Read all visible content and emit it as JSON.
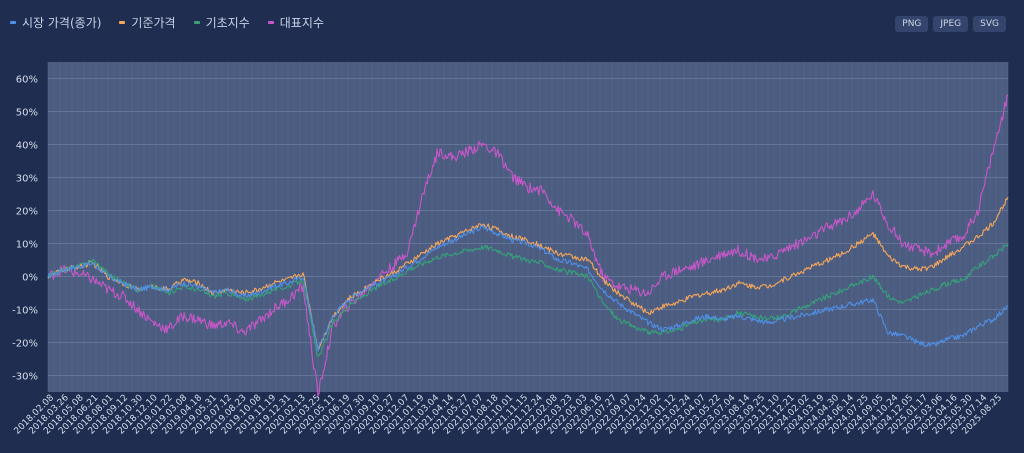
{
  "legend": {
    "items": [
      {
        "label": "시장 가격(종가)",
        "color": "#4f8fe6"
      },
      {
        "label": "기준가격",
        "color": "#f5a65a"
      },
      {
        "label": "기초지수",
        "color": "#37a07a"
      },
      {
        "label": "대표지수",
        "color": "#c857c8"
      }
    ]
  },
  "toolbar": {
    "png": "PNG",
    "jpeg": "JPEG",
    "svg": "SVG"
  },
  "chart_data": {
    "type": "line",
    "ylim": [
      -35,
      65
    ],
    "yticks": [
      "60%",
      "50%",
      "40%",
      "30%",
      "20%",
      "10%",
      "0%",
      "-10%",
      "-20%",
      "-30%"
    ],
    "xlabels": [
      "2018.02.08",
      "2018.03.26",
      "2018.05.08",
      "2018.06.21",
      "2018.08.01",
      "2018.09.12",
      "2018.10.30",
      "2018.12.10",
      "2019.01.22",
      "2019.03.08",
      "2019.04.18",
      "2019.05.31",
      "2019.07.12",
      "2019.08.23",
      "2019.10.08",
      "2019.11.19",
      "2019.12.31",
      "2020.02.13",
      "2020.03.25",
      "2020.05.11",
      "2020.06.19",
      "2020.07.30",
      "2020.09.10",
      "2020.10.27",
      "2020.12.07",
      "2021.01.19",
      "2021.03.04",
      "2021.04.14",
      "2021.05.27",
      "2021.07.07",
      "2021.08.18",
      "2021.10.01",
      "2021.11.15",
      "2021.12.24",
      "2022.02.08",
      "2022.03.23",
      "2022.05.03",
      "2022.06.16",
      "2022.07.27",
      "2022.09.07",
      "2022.10.24",
      "2022.12.02",
      "2023.01.12",
      "2023.02.24",
      "2023.04.07",
      "2023.05.22",
      "2023.07.04",
      "2023.08.14",
      "2023.09.25",
      "2023.11.10",
      "2023.12.21",
      "2024.02.02",
      "2024.03.19",
      "2024.04.30",
      "2024.06.14",
      "2024.07.25",
      "2024.09.05",
      "2024.10.24",
      "2024.12.05",
      "2025.01.17",
      "2025.03.06",
      "2025.04.16",
      "2025.05.30",
      "2025.07.14",
      "2025.08.25"
    ],
    "series": [
      {
        "name": "시장 가격(종가)",
        "color": "#4f8fe6",
        "values": [
          0,
          2,
          3,
          4,
          0,
          -2,
          -4,
          -3,
          -4,
          -2,
          -3,
          -5,
          -4,
          -6,
          -5,
          -3,
          -2,
          0,
          -22,
          -12,
          -7,
          -4,
          -2,
          0,
          3,
          6,
          9,
          11,
          13,
          15,
          13,
          11,
          10,
          8,
          5,
          4,
          2,
          -4,
          -8,
          -11,
          -14,
          -16,
          -15,
          -13,
          -12,
          -13,
          -12,
          -13,
          -14,
          -13,
          -12,
          -11,
          -10,
          -9,
          -8,
          -7,
          -17,
          -18,
          -20,
          -21,
          -19,
          -18,
          -15,
          -13,
          -9
        ]
      },
      {
        "name": "기준가격",
        "color": "#f5a65a",
        "values": [
          0,
          2,
          3,
          4,
          0,
          -2,
          -4,
          -3,
          -4,
          -1,
          -2,
          -5,
          -4,
          -5,
          -4,
          -2,
          -1,
          1,
          -22,
          -12,
          -7,
          -4,
          -1,
          1,
          4,
          7,
          10,
          12,
          14,
          16,
          14,
          12,
          11,
          9,
          7,
          6,
          5,
          -1,
          -5,
          -8,
          -11,
          -9,
          -8,
          -6,
          -5,
          -4,
          -2,
          -3,
          -3,
          -1,
          1,
          3,
          5,
          7,
          10,
          13,
          6,
          3,
          2,
          3,
          6,
          9,
          12,
          16,
          24
        ]
      },
      {
        "name": "기초지수",
        "color": "#37a07a",
        "values": [
          0,
          2,
          3,
          5,
          1,
          -2,
          -4,
          -3,
          -5,
          -3,
          -4,
          -6,
          -5,
          -7,
          -6,
          -4,
          -3,
          -1,
          -25,
          -14,
          -9,
          -6,
          -3,
          -1,
          2,
          4,
          6,
          7,
          8,
          9,
          8,
          6,
          5,
          4,
          2,
          1,
          0,
          -8,
          -13,
          -15,
          -17,
          -17,
          -16,
          -14,
          -13,
          -13,
          -11,
          -12,
          -13,
          -12,
          -10,
          -8,
          -6,
          -4,
          -2,
          0,
          -6,
          -8,
          -6,
          -4,
          -2,
          -1,
          3,
          6,
          10
        ]
      },
      {
        "name": "대표지수",
        "color": "#c857c8",
        "values": [
          0,
          2,
          1,
          -1,
          -4,
          -6,
          -10,
          -14,
          -16,
          -12,
          -13,
          -15,
          -14,
          -17,
          -14,
          -10,
          -7,
          -3,
          -36,
          -15,
          -9,
          -5,
          0,
          3,
          8,
          25,
          38,
          36,
          38,
          40,
          37,
          30,
          27,
          26,
          20,
          17,
          12,
          0,
          -3,
          -4,
          -5,
          0,
          2,
          3,
          5,
          7,
          8,
          6,
          5,
          8,
          10,
          12,
          15,
          17,
          20,
          25,
          16,
          10,
          8,
          7,
          10,
          12,
          20,
          38,
          55
        ]
      }
    ]
  }
}
